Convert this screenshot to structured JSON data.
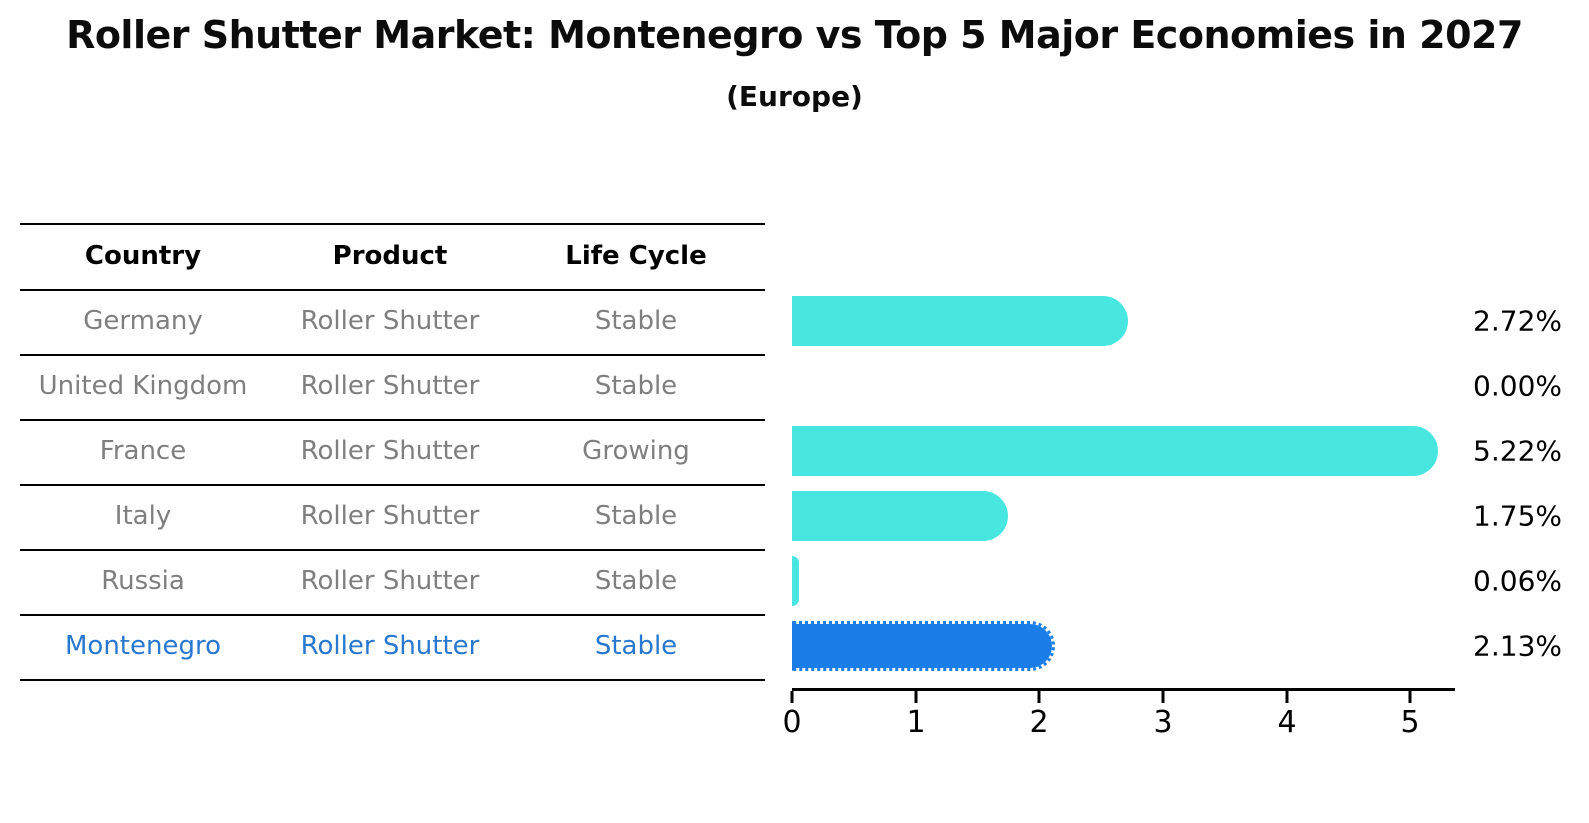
{
  "title": "Roller Shutter Market: Montenegro vs Top 5 Major Economies in 2027",
  "subtitle": "(Europe)",
  "table": {
    "headers": [
      "Country",
      "Product",
      "Life Cycle"
    ],
    "rows": [
      {
        "country": "Germany",
        "product": "Roller Shutter",
        "life_cycle": "Stable"
      },
      {
        "country": "United Kingdom",
        "product": "Roller Shutter",
        "life_cycle": "Stable"
      },
      {
        "country": "France",
        "product": "Roller Shutter",
        "life_cycle": "Growing"
      },
      {
        "country": "Italy",
        "product": "Roller Shutter",
        "life_cycle": "Stable"
      },
      {
        "country": "Russia",
        "product": "Roller Shutter",
        "life_cycle": "Stable"
      },
      {
        "country": "Montenegro",
        "product": "Roller Shutter",
        "life_cycle": "Stable"
      }
    ]
  },
  "chart_data": {
    "type": "bar",
    "orientation": "horizontal",
    "title": "Roller Shutter Market: Montenegro vs Top 5 Major Economies in 2027",
    "subtitle": "(Europe)",
    "categories": [
      "Germany",
      "United Kingdom",
      "France",
      "Italy",
      "Russia",
      "Montenegro"
    ],
    "values": [
      2.72,
      0.0,
      5.22,
      1.75,
      0.06,
      2.13
    ],
    "value_labels": [
      "2.72%",
      "0.00%",
      "5.22%",
      "1.75%",
      "0.06%",
      "2.13%"
    ],
    "xlabel": "",
    "ylabel": "",
    "xlim": [
      0,
      5.36
    ],
    "x_ticks": [
      0,
      1,
      2,
      3,
      4,
      5
    ],
    "grid": false,
    "legend": "none",
    "bar_color": "#47e6e0",
    "highlight_bar_color": "#1b7ee8",
    "highlight_category": "Montenegro"
  },
  "colors": {
    "background": "#ffffff",
    "bar_cyan": "#47e6e0",
    "bar_blue": "#1b7ee8",
    "table_text_gray": "#7f7f7f",
    "highlight_text_blue": "#2878cf",
    "text_black": "#000000"
  }
}
